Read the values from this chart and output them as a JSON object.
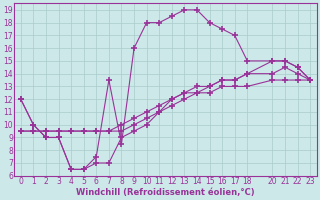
{
  "xlabel": "Windchill (Refroidissement éolien,°C)",
  "bg_color": "#cce8e8",
  "line_color": "#993399",
  "grid_color": "#aacccc",
  "xlim": [
    -0.5,
    23.5
  ],
  "ylim": [
    6,
    19.5
  ],
  "xticks": [
    0,
    1,
    2,
    3,
    4,
    5,
    6,
    7,
    8,
    9,
    10,
    11,
    12,
    13,
    14,
    15,
    16,
    17,
    18,
    20,
    21,
    22,
    23
  ],
  "yticks": [
    6,
    7,
    8,
    9,
    10,
    11,
    12,
    13,
    14,
    15,
    16,
    17,
    18,
    19
  ],
  "series": [
    {
      "x": [
        0,
        1,
        2,
        3,
        4,
        5,
        6,
        7,
        8,
        9,
        10,
        11,
        12,
        13,
        14,
        15,
        16,
        17,
        18,
        20,
        21,
        22,
        23
      ],
      "y": [
        9.5,
        9.5,
        9.5,
        9.5,
        9.5,
        9.5,
        9.5,
        9.5,
        9.5,
        10,
        10.5,
        11,
        11.5,
        12,
        12.5,
        12.5,
        13,
        13,
        13,
        13.5,
        13.5,
        13.5,
        13.5
      ]
    },
    {
      "x": [
        0,
        1,
        2,
        3,
        4,
        5,
        6,
        7,
        8,
        9,
        10,
        11,
        12,
        13,
        14,
        15,
        16,
        17,
        18,
        20,
        21,
        22,
        23
      ],
      "y": [
        9.5,
        9.5,
        9.5,
        9.5,
        9.5,
        9.5,
        9.5,
        9.5,
        10,
        10.5,
        11,
        11.5,
        12,
        12.5,
        13,
        13,
        13.5,
        13.5,
        14,
        14,
        14.5,
        14,
        13.5
      ]
    },
    {
      "x": [
        0,
        1,
        2,
        3,
        4,
        5,
        6,
        7,
        8,
        9,
        10,
        11,
        12,
        13,
        14,
        15,
        16,
        17,
        18,
        20,
        21,
        22,
        23
      ],
      "y": [
        12,
        10,
        9,
        9,
        6.5,
        6.5,
        7,
        7,
        9,
        9.5,
        10,
        11,
        12,
        12.5,
        12.5,
        13,
        13.5,
        13.5,
        14,
        15,
        15,
        14.5,
        13.5
      ]
    },
    {
      "x": [
        0,
        1,
        2,
        3,
        4,
        5,
        6,
        7,
        8,
        9,
        10,
        11,
        12,
        13,
        14,
        15,
        16,
        17,
        18,
        20,
        21,
        22,
        23
      ],
      "y": [
        12,
        10,
        9,
        9,
        6.5,
        6.5,
        7.5,
        13.5,
        8.5,
        16,
        18,
        18,
        18.5,
        19,
        19,
        18,
        17.5,
        17,
        15,
        15,
        15,
        14.5,
        13.5
      ]
    }
  ]
}
